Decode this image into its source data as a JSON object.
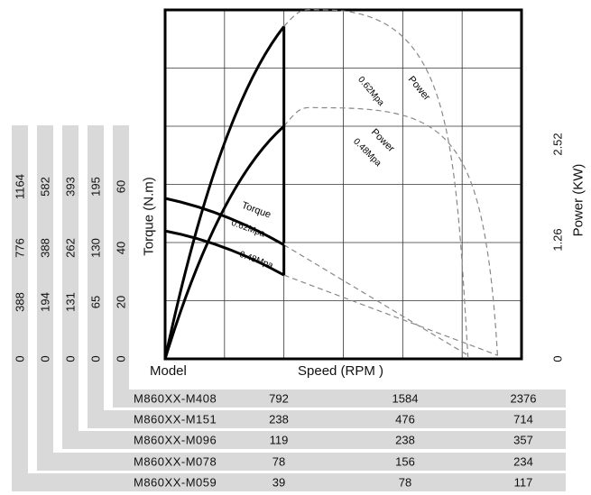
{
  "chart_data": {
    "type": "line",
    "xlabel": "Speed (RPM )",
    "ylabel": "Torque (N.m)",
    "y2label": "Power (KW)",
    "table_header": "Model",
    "power_ticks": [
      "0",
      "1.26",
      "2.52"
    ],
    "torque_axes": [
      {
        "model": "M860XX-M408",
        "ticks": [
          "0",
          "388",
          "776",
          "1164"
        ]
      },
      {
        "model": "M860XX-M151",
        "ticks": [
          "0",
          "194",
          "388",
          "582"
        ]
      },
      {
        "model": "M860XX-M096",
        "ticks": [
          "0",
          "131",
          "262",
          "393"
        ]
      },
      {
        "model": "M860XX-M078",
        "ticks": [
          "0",
          "65",
          "130",
          "195"
        ]
      },
      {
        "model": "M860XX-M059",
        "ticks": [
          "0",
          "20",
          "40",
          "60"
        ]
      }
    ],
    "speed_rows": [
      {
        "model": "M860XX-M408",
        "values": [
          "792",
          "1584",
          "2376"
        ]
      },
      {
        "model": "M860XX-M151",
        "values": [
          "238",
          "476",
          "714"
        ]
      },
      {
        "model": "M860XX-M096",
        "values": [
          "119",
          "238",
          "357"
        ]
      },
      {
        "model": "M860XX-M078",
        "values": [
          "78",
          "156",
          "234"
        ]
      },
      {
        "model": "M860XX-M059",
        "values": [
          "39",
          "78",
          "117"
        ]
      }
    ],
    "x_range_relative": [
      0,
      3
    ],
    "torque_range_relative": [
      0,
      3
    ],
    "power_range_kw": [
      0,
      3.78
    ],
    "series": [
      {
        "name": "Torque 0.62Mpa",
        "kind": "torque",
        "solid_until_x": 1.0,
        "points": [
          [
            0,
            1.38
          ],
          [
            1.0,
            0.98
          ],
          [
            2.55,
            0.03
          ]
        ]
      },
      {
        "name": "Torque 0.48Mpa",
        "kind": "torque",
        "solid_until_x": 1.0,
        "points": [
          [
            0,
            1.1
          ],
          [
            1.0,
            0.72
          ],
          [
            2.8,
            0.03
          ]
        ]
      },
      {
        "name": "Power 0.62Mpa",
        "kind": "power",
        "solid_until_x": 1.0,
        "points": [
          [
            0,
            0
          ],
          [
            1.0,
            3.6
          ],
          [
            1.34,
            3.78
          ],
          [
            2.55,
            0
          ]
        ]
      },
      {
        "name": "Power 0.48Mpa",
        "kind": "power",
        "solid_until_x": 1.0,
        "points": [
          [
            0,
            0
          ],
          [
            1.0,
            2.52
          ],
          [
            1.34,
            2.72
          ],
          [
            2.8,
            0
          ]
        ]
      }
    ],
    "annotations": [
      {
        "text": "Power",
        "series": "Power 0.62Mpa"
      },
      {
        "text": "0.62Mpa",
        "series": "Power 0.62Mpa"
      },
      {
        "text": "Power",
        "series": "Power 0.48Mpa"
      },
      {
        "text": "0.48Mpa",
        "series": "Power 0.48Mpa"
      },
      {
        "text": "Torque",
        "series": "Torque 0.62Mpa"
      },
      {
        "text": "0.62Mpa",
        "series": "Torque 0.62Mpa"
      },
      {
        "text": "0.48Mpa",
        "series": "Torque 0.48Mpa"
      }
    ],
    "grid": true
  }
}
